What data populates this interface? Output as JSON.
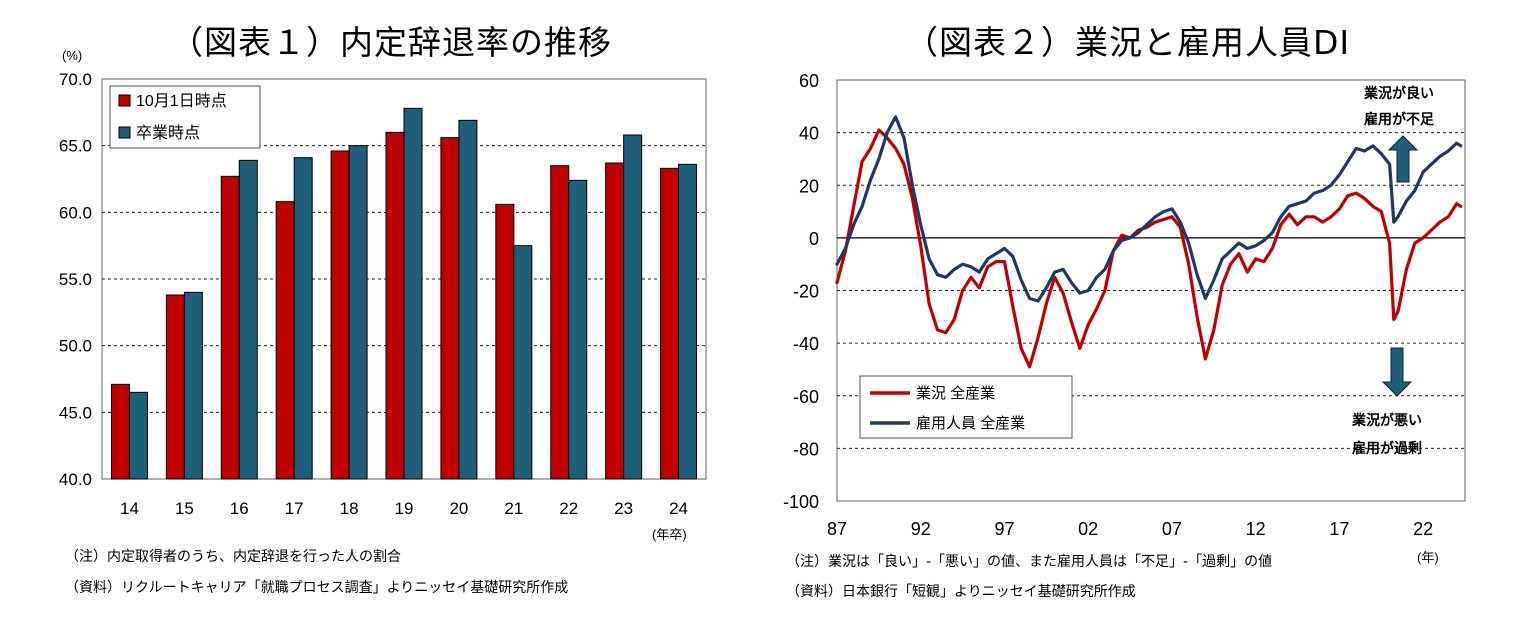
{
  "chart_data": [
    {
      "type": "bar",
      "title": "（図表１）内定辞退率の推移",
      "ylabel": "(%)",
      "xunit": "(年卒)",
      "ylim": [
        40,
        70
      ],
      "yticks": [
        "70.0",
        "65.0",
        "60.0",
        "55.0",
        "50.0",
        "45.0",
        "40.0"
      ],
      "categories": [
        "14",
        "15",
        "16",
        "17",
        "18",
        "19",
        "20",
        "21",
        "22",
        "23",
        "24"
      ],
      "series": [
        {
          "name": "10月1日時点",
          "color": "#c00000",
          "values": [
            47.1,
            53.8,
            62.7,
            60.8,
            64.6,
            66.0,
            65.6,
            60.6,
            63.5,
            63.7,
            63.3
          ]
        },
        {
          "name": "卒業時点",
          "color": "#1f5f7a",
          "values": [
            46.5,
            54.0,
            63.9,
            64.1,
            65.0,
            67.8,
            66.9,
            57.5,
            62.4,
            65.8,
            63.6
          ]
        }
      ],
      "legend": "top-left",
      "grid": "dashed",
      "notes": [
        "（注）内定取得者のうち、内定辞退を行った人の割合",
        "（資料）リクルートキャリア「就職プロセス調査」よりニッセイ基礎研究所作成"
      ]
    },
    {
      "type": "line",
      "title": "（図表２）業況と雇用人員DI",
      "xunit": "(年)",
      "ylim": [
        -100,
        60
      ],
      "yticks": [
        "60",
        "40",
        "20",
        "0",
        "-20",
        "-40",
        "-60",
        "-80",
        "-100"
      ],
      "xticks": [
        "87",
        "92",
        "97",
        "02",
        "07",
        "12",
        "17",
        "22"
      ],
      "xlim": [
        1987,
        2024.5
      ],
      "series": [
        {
          "name": "業況 全産業",
          "color": "#c00000",
          "x": [
            1987.0,
            1987.5,
            1988.0,
            1988.5,
            1989.0,
            1989.5,
            1990.0,
            1990.5,
            1991.0,
            1991.5,
            1992.0,
            1992.5,
            1993.0,
            1993.5,
            1994.0,
            1994.5,
            1995.0,
            1995.5,
            1996.0,
            1996.5,
            1997.0,
            1997.5,
            1998.0,
            1998.5,
            1999.0,
            1999.5,
            2000.0,
            2000.5,
            2001.0,
            2001.5,
            2002.0,
            2002.5,
            2003.0,
            2003.5,
            2004.0,
            2004.5,
            2005.0,
            2005.5,
            2006.0,
            2006.5,
            2007.0,
            2007.5,
            2008.0,
            2008.5,
            2009.0,
            2009.5,
            2010.0,
            2010.5,
            2011.0,
            2011.5,
            2012.0,
            2012.5,
            2013.0,
            2013.5,
            2014.0,
            2014.5,
            2015.0,
            2015.5,
            2016.0,
            2016.5,
            2017.0,
            2017.5,
            2018.0,
            2018.5,
            2019.0,
            2019.5,
            2020.0,
            2020.25,
            2020.5,
            2021.0,
            2021.5,
            2022.0,
            2022.5,
            2023.0,
            2023.5,
            2024.0,
            2024.25
          ],
          "y": [
            -17,
            -5,
            12,
            29,
            34,
            41,
            38,
            34,
            28,
            15,
            -3,
            -25,
            -35,
            -36,
            -31,
            -20,
            -15,
            -19,
            -11,
            -9,
            -9,
            -26,
            -42,
            -49,
            -38,
            -25,
            -15,
            -21,
            -32,
            -42,
            -33,
            -27,
            -20,
            -5,
            1,
            0,
            3,
            4,
            6,
            7,
            8,
            4,
            -10,
            -30,
            -46,
            -35,
            -18,
            -10,
            -6,
            -13,
            -8,
            -9,
            -4,
            5,
            9,
            5,
            8,
            8,
            6,
            8,
            11,
            16,
            17,
            15,
            12,
            10,
            -2,
            -31,
            -28,
            -12,
            -2,
            0,
            3,
            6,
            8,
            13,
            12
          ]
        },
        {
          "name": "雇用人員 全産業",
          "color": "#1f3864",
          "x": [
            1987.0,
            1987.5,
            1988.0,
            1988.5,
            1989.0,
            1989.5,
            1990.0,
            1990.5,
            1991.0,
            1991.5,
            1992.0,
            1992.5,
            1993.0,
            1993.5,
            1994.0,
            1994.5,
            1995.0,
            1995.5,
            1996.0,
            1996.5,
            1997.0,
            1997.5,
            1998.0,
            1998.5,
            1999.0,
            1999.5,
            2000.0,
            2000.5,
            2001.0,
            2001.5,
            2002.0,
            2002.5,
            2003.0,
            2003.5,
            2004.0,
            2004.5,
            2005.0,
            2005.5,
            2006.0,
            2006.5,
            2007.0,
            2007.5,
            2008.0,
            2008.5,
            2009.0,
            2009.5,
            2010.0,
            2010.5,
            2011.0,
            2011.5,
            2012.0,
            2012.5,
            2013.0,
            2013.5,
            2014.0,
            2014.5,
            2015.0,
            2015.5,
            2016.0,
            2016.5,
            2017.0,
            2017.5,
            2018.0,
            2018.5,
            2019.0,
            2019.5,
            2020.0,
            2020.25,
            2020.5,
            2021.0,
            2021.5,
            2022.0,
            2022.5,
            2023.0,
            2023.5,
            2024.0,
            2024.25
          ],
          "y": [
            -10,
            -4,
            5,
            12,
            22,
            30,
            40,
            46,
            38,
            20,
            5,
            -8,
            -14,
            -15,
            -12,
            -10,
            -11,
            -13,
            -8,
            -6,
            -4,
            -7,
            -16,
            -23,
            -24,
            -19,
            -13,
            -12,
            -17,
            -21,
            -20,
            -15,
            -12,
            -5,
            -1,
            0,
            2,
            5,
            8,
            10,
            11,
            6,
            -2,
            -14,
            -23,
            -16,
            -8,
            -5,
            -2,
            -4,
            -3,
            -1,
            2,
            8,
            12,
            13,
            14,
            17,
            18,
            20,
            24,
            29,
            34,
            33,
            35,
            32,
            28,
            6,
            8,
            14,
            18,
            25,
            28,
            31,
            33,
            36,
            35
          ]
        }
      ],
      "legend": "bottom-left",
      "grid": "dashed",
      "annotations": {
        "up": [
          "業況が良い",
          "雇用が不足"
        ],
        "down": [
          "業況が悪い",
          "雇用が過剰"
        ]
      },
      "notes": [
        "（注）業況は「良い」-「悪い」の値、また雇用人員は「不足」-「過剰」の値",
        "（資料）日本銀行「短観」よりニッセイ基礎研究所作成"
      ]
    }
  ]
}
